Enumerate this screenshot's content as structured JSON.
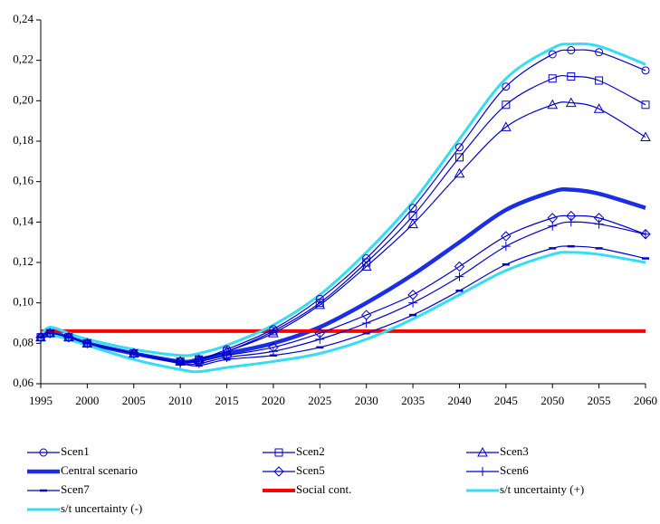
{
  "chart_data": {
    "type": "line",
    "x": [
      1995,
      1996,
      1998,
      2000,
      2005,
      2010,
      2012,
      2015,
      2020,
      2025,
      2030,
      2035,
      2040,
      2045,
      2050,
      2052,
      2055,
      2060
    ],
    "xlim": [
      1995,
      2060
    ],
    "xticks": [
      1995,
      2000,
      2005,
      2010,
      2015,
      2020,
      2025,
      2030,
      2035,
      2040,
      2045,
      2050,
      2055,
      2060
    ],
    "ylim": [
      0.06,
      0.24
    ],
    "yticks": [
      {
        "value": 0.06,
        "label": "0,06"
      },
      {
        "value": 0.08,
        "label": "0,08"
      },
      {
        "value": 0.1,
        "label": "0,10"
      },
      {
        "value": 0.12,
        "label": "0,12"
      },
      {
        "value": 0.14,
        "label": "0,14"
      },
      {
        "value": 0.16,
        "label": "0,16"
      },
      {
        "value": 0.18,
        "label": "0,18"
      },
      {
        "value": 0.2,
        "label": "0,20"
      },
      {
        "value": 0.22,
        "label": "0,22"
      },
      {
        "value": 0.24,
        "label": "0,24"
      }
    ],
    "grid": false,
    "series": [
      {
        "name": "Scen1",
        "color": "#0000cc",
        "width": 1.2,
        "marker": "circle",
        "values": [
          0.083,
          0.085,
          0.083,
          0.08,
          0.075,
          0.071,
          0.072,
          0.077,
          0.087,
          0.102,
          0.122,
          0.147,
          0.177,
          0.207,
          0.223,
          0.225,
          0.224,
          0.215
        ]
      },
      {
        "name": "Scen2",
        "color": "#0000cc",
        "width": 1.2,
        "marker": "square",
        "values": [
          0.083,
          0.085,
          0.083,
          0.08,
          0.075,
          0.071,
          0.072,
          0.076,
          0.086,
          0.1,
          0.12,
          0.143,
          0.172,
          0.198,
          0.211,
          0.212,
          0.21,
          0.198
        ]
      },
      {
        "name": "Scen3",
        "color": "#0000cc",
        "width": 1.2,
        "marker": "triangle",
        "values": [
          0.083,
          0.085,
          0.083,
          0.08,
          0.075,
          0.071,
          0.072,
          0.076,
          0.085,
          0.099,
          0.118,
          0.139,
          0.164,
          0.187,
          0.198,
          0.199,
          0.196,
          0.182
        ]
      },
      {
        "name": "Central scenario",
        "color": "#1a2ee6",
        "width": 4.5,
        "marker": "none",
        "values": [
          0.083,
          0.085,
          0.083,
          0.08,
          0.075,
          0.071,
          0.072,
          0.075,
          0.08,
          0.088,
          0.1,
          0.114,
          0.13,
          0.146,
          0.155,
          0.156,
          0.154,
          0.147
        ]
      },
      {
        "name": "Scen5",
        "color": "#0000cc",
        "width": 1.2,
        "marker": "diamond",
        "values": [
          0.083,
          0.085,
          0.083,
          0.08,
          0.075,
          0.071,
          0.071,
          0.074,
          0.078,
          0.085,
          0.094,
          0.104,
          0.118,
          0.133,
          0.142,
          0.143,
          0.142,
          0.134
        ]
      },
      {
        "name": "Scen6",
        "color": "#0000cc",
        "width": 1.2,
        "marker": "plus",
        "values": [
          0.083,
          0.085,
          0.083,
          0.08,
          0.075,
          0.07,
          0.07,
          0.073,
          0.076,
          0.082,
          0.09,
          0.1,
          0.113,
          0.128,
          0.138,
          0.14,
          0.139,
          0.134
        ]
      },
      {
        "name": "Scen7",
        "color": "#0000cc",
        "width": 1.2,
        "marker": "dash",
        "values": [
          0.083,
          0.085,
          0.083,
          0.08,
          0.075,
          0.07,
          0.069,
          0.072,
          0.074,
          0.078,
          0.085,
          0.094,
          0.106,
          0.119,
          0.127,
          0.128,
          0.127,
          0.122
        ]
      },
      {
        "name": "Social cont.",
        "color": "#ff0000",
        "width": 4,
        "marker": "none",
        "values": [
          0.086,
          0.086,
          0.086,
          0.086,
          0.086,
          0.086,
          0.086,
          0.086,
          0.086,
          0.086,
          0.086,
          0.086,
          0.086,
          0.086,
          0.086,
          0.086,
          0.086,
          0.086
        ]
      },
      {
        "name": "s/t uncertainty (+)",
        "color": "#33ddf5",
        "width": 3,
        "marker": "none",
        "values": [
          0.084,
          0.088,
          0.085,
          0.082,
          0.077,
          0.074,
          0.075,
          0.079,
          0.089,
          0.104,
          0.125,
          0.15,
          0.181,
          0.211,
          0.226,
          0.228,
          0.227,
          0.218
        ]
      },
      {
        "name": "s/t uncertainty (-)",
        "color": "#33ddf5",
        "width": 3,
        "marker": "none",
        "values": [
          0.082,
          0.084,
          0.082,
          0.079,
          0.072,
          0.067,
          0.066,
          0.068,
          0.071,
          0.075,
          0.082,
          0.092,
          0.104,
          0.116,
          0.124,
          0.125,
          0.124,
          0.12
        ]
      }
    ]
  }
}
